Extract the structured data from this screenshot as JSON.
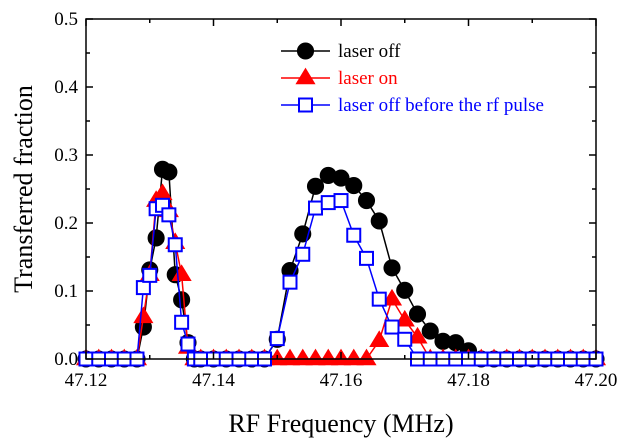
{
  "chart_data": {
    "type": "line",
    "xlabel": "RF Frequency (MHz)",
    "ylabel": "Transferred fraction",
    "xlim": [
      47.12,
      47.2
    ],
    "ylim": [
      0.0,
      0.5
    ],
    "xticks": [
      47.12,
      47.14,
      47.16,
      47.18,
      47.2
    ],
    "xtick_labels": [
      "47.12",
      "47.14",
      "47.16",
      "47.18",
      "47.20"
    ],
    "yticks": [
      0.0,
      0.1,
      0.2,
      0.3,
      0.4,
      0.5
    ],
    "ytick_labels": [
      "0.0",
      "0.1",
      "0.2",
      "0.3",
      "0.4",
      "0.5"
    ],
    "legend_position": "top-right",
    "grid": false,
    "series": [
      {
        "name": "laser off",
        "color": "#000000",
        "marker": "circle",
        "points": [
          [
            47.12,
            0.0
          ],
          [
            47.122,
            0.0
          ],
          [
            47.124,
            0.0
          ],
          [
            47.126,
            0.0
          ],
          [
            47.128,
            0.0
          ],
          [
            47.129,
            0.047
          ],
          [
            47.13,
            0.131
          ],
          [
            47.131,
            0.178
          ],
          [
            47.132,
            0.279
          ],
          [
            47.133,
            0.275
          ],
          [
            47.134,
            0.124
          ],
          [
            47.135,
            0.087
          ],
          [
            47.136,
            0.024
          ],
          [
            47.137,
            0.0
          ],
          [
            47.138,
            0.0
          ],
          [
            47.14,
            0.0
          ],
          [
            47.142,
            0.0
          ],
          [
            47.144,
            0.0
          ],
          [
            47.146,
            0.0
          ],
          [
            47.148,
            0.0
          ],
          [
            47.15,
            0.029
          ],
          [
            47.152,
            0.13
          ],
          [
            47.154,
            0.184
          ],
          [
            47.156,
            0.254
          ],
          [
            47.158,
            0.27
          ],
          [
            47.16,
            0.266
          ],
          [
            47.162,
            0.255
          ],
          [
            47.164,
            0.233
          ],
          [
            47.166,
            0.203
          ],
          [
            47.168,
            0.134
          ],
          [
            47.17,
            0.101
          ],
          [
            47.172,
            0.066
          ],
          [
            47.174,
            0.041
          ],
          [
            47.176,
            0.026
          ],
          [
            47.178,
            0.024
          ],
          [
            47.18,
            0.012
          ],
          [
            47.182,
            0.0
          ],
          [
            47.184,
            0.0
          ],
          [
            47.186,
            0.0
          ],
          [
            47.188,
            0.0
          ],
          [
            47.19,
            0.0
          ],
          [
            47.192,
            0.0
          ],
          [
            47.194,
            0.0
          ],
          [
            47.196,
            0.0
          ],
          [
            47.198,
            0.0
          ],
          [
            47.2,
            0.0
          ]
        ]
      },
      {
        "name": "laser on",
        "color": "#ff0000",
        "marker": "triangle",
        "points": [
          [
            47.12,
            0.0
          ],
          [
            47.122,
            0.0
          ],
          [
            47.124,
            0.0
          ],
          [
            47.126,
            0.0
          ],
          [
            47.128,
            0.0
          ],
          [
            47.129,
            0.062
          ],
          [
            47.13,
            0.124
          ],
          [
            47.131,
            0.233
          ],
          [
            47.132,
            0.243
          ],
          [
            47.133,
            0.218
          ],
          [
            47.134,
            0.171
          ],
          [
            47.135,
            0.124
          ],
          [
            47.136,
            0.017
          ],
          [
            47.137,
            0.0
          ],
          [
            47.138,
            0.0
          ],
          [
            47.14,
            0.0
          ],
          [
            47.142,
            0.0
          ],
          [
            47.144,
            0.0
          ],
          [
            47.146,
            0.0
          ],
          [
            47.148,
            0.0
          ],
          [
            47.15,
            0.0
          ],
          [
            47.152,
            0.0
          ],
          [
            47.154,
            0.0
          ],
          [
            47.156,
            0.0
          ],
          [
            47.158,
            0.0
          ],
          [
            47.16,
            0.0
          ],
          [
            47.162,
            0.0
          ],
          [
            47.164,
            0.0
          ],
          [
            47.166,
            0.027
          ],
          [
            47.168,
            0.088
          ],
          [
            47.17,
            0.057
          ],
          [
            47.172,
            0.032
          ],
          [
            47.174,
            0.0
          ],
          [
            47.176,
            0.0
          ],
          [
            47.178,
            0.0
          ],
          [
            47.18,
            0.0
          ],
          [
            47.182,
            0.0
          ],
          [
            47.184,
            0.0
          ],
          [
            47.186,
            0.0
          ],
          [
            47.188,
            0.0
          ],
          [
            47.19,
            0.0
          ],
          [
            47.192,
            0.0
          ],
          [
            47.194,
            0.0
          ],
          [
            47.196,
            0.0
          ],
          [
            47.198,
            0.0
          ],
          [
            47.2,
            0.0
          ]
        ]
      },
      {
        "name": "laser off before the rf pulse",
        "color": "#0000ff",
        "marker": "open-square",
        "points": [
          [
            47.12,
            0.0
          ],
          [
            47.122,
            0.0
          ],
          [
            47.124,
            0.0
          ],
          [
            47.126,
            0.0
          ],
          [
            47.128,
            0.0
          ],
          [
            47.129,
            0.105
          ],
          [
            47.13,
            0.123
          ],
          [
            47.131,
            0.221
          ],
          [
            47.132,
            0.226
          ],
          [
            47.133,
            0.212
          ],
          [
            47.134,
            0.168
          ],
          [
            47.135,
            0.054
          ],
          [
            47.136,
            0.022
          ],
          [
            47.137,
            0.0
          ],
          [
            47.138,
            0.0
          ],
          [
            47.14,
            0.0
          ],
          [
            47.142,
            0.0
          ],
          [
            47.144,
            0.0
          ],
          [
            47.146,
            0.0
          ],
          [
            47.148,
            0.0
          ],
          [
            47.15,
            0.03
          ],
          [
            47.152,
            0.113
          ],
          [
            47.154,
            0.154
          ],
          [
            47.156,
            0.222
          ],
          [
            47.158,
            0.23
          ],
          [
            47.16,
            0.233
          ],
          [
            47.162,
            0.182
          ],
          [
            47.164,
            0.148
          ],
          [
            47.166,
            0.088
          ],
          [
            47.168,
            0.047
          ],
          [
            47.17,
            0.029
          ],
          [
            47.172,
            0.0
          ],
          [
            47.174,
            0.0
          ],
          [
            47.176,
            0.0
          ],
          [
            47.178,
            0.0
          ],
          [
            47.18,
            0.0
          ],
          [
            47.182,
            0.0
          ],
          [
            47.184,
            0.0
          ],
          [
            47.186,
            0.0
          ],
          [
            47.188,
            0.0
          ],
          [
            47.19,
            0.0
          ],
          [
            47.192,
            0.0
          ],
          [
            47.194,
            0.0
          ],
          [
            47.196,
            0.0
          ],
          [
            47.198,
            0.0
          ],
          [
            47.2,
            0.0
          ]
        ]
      }
    ]
  }
}
